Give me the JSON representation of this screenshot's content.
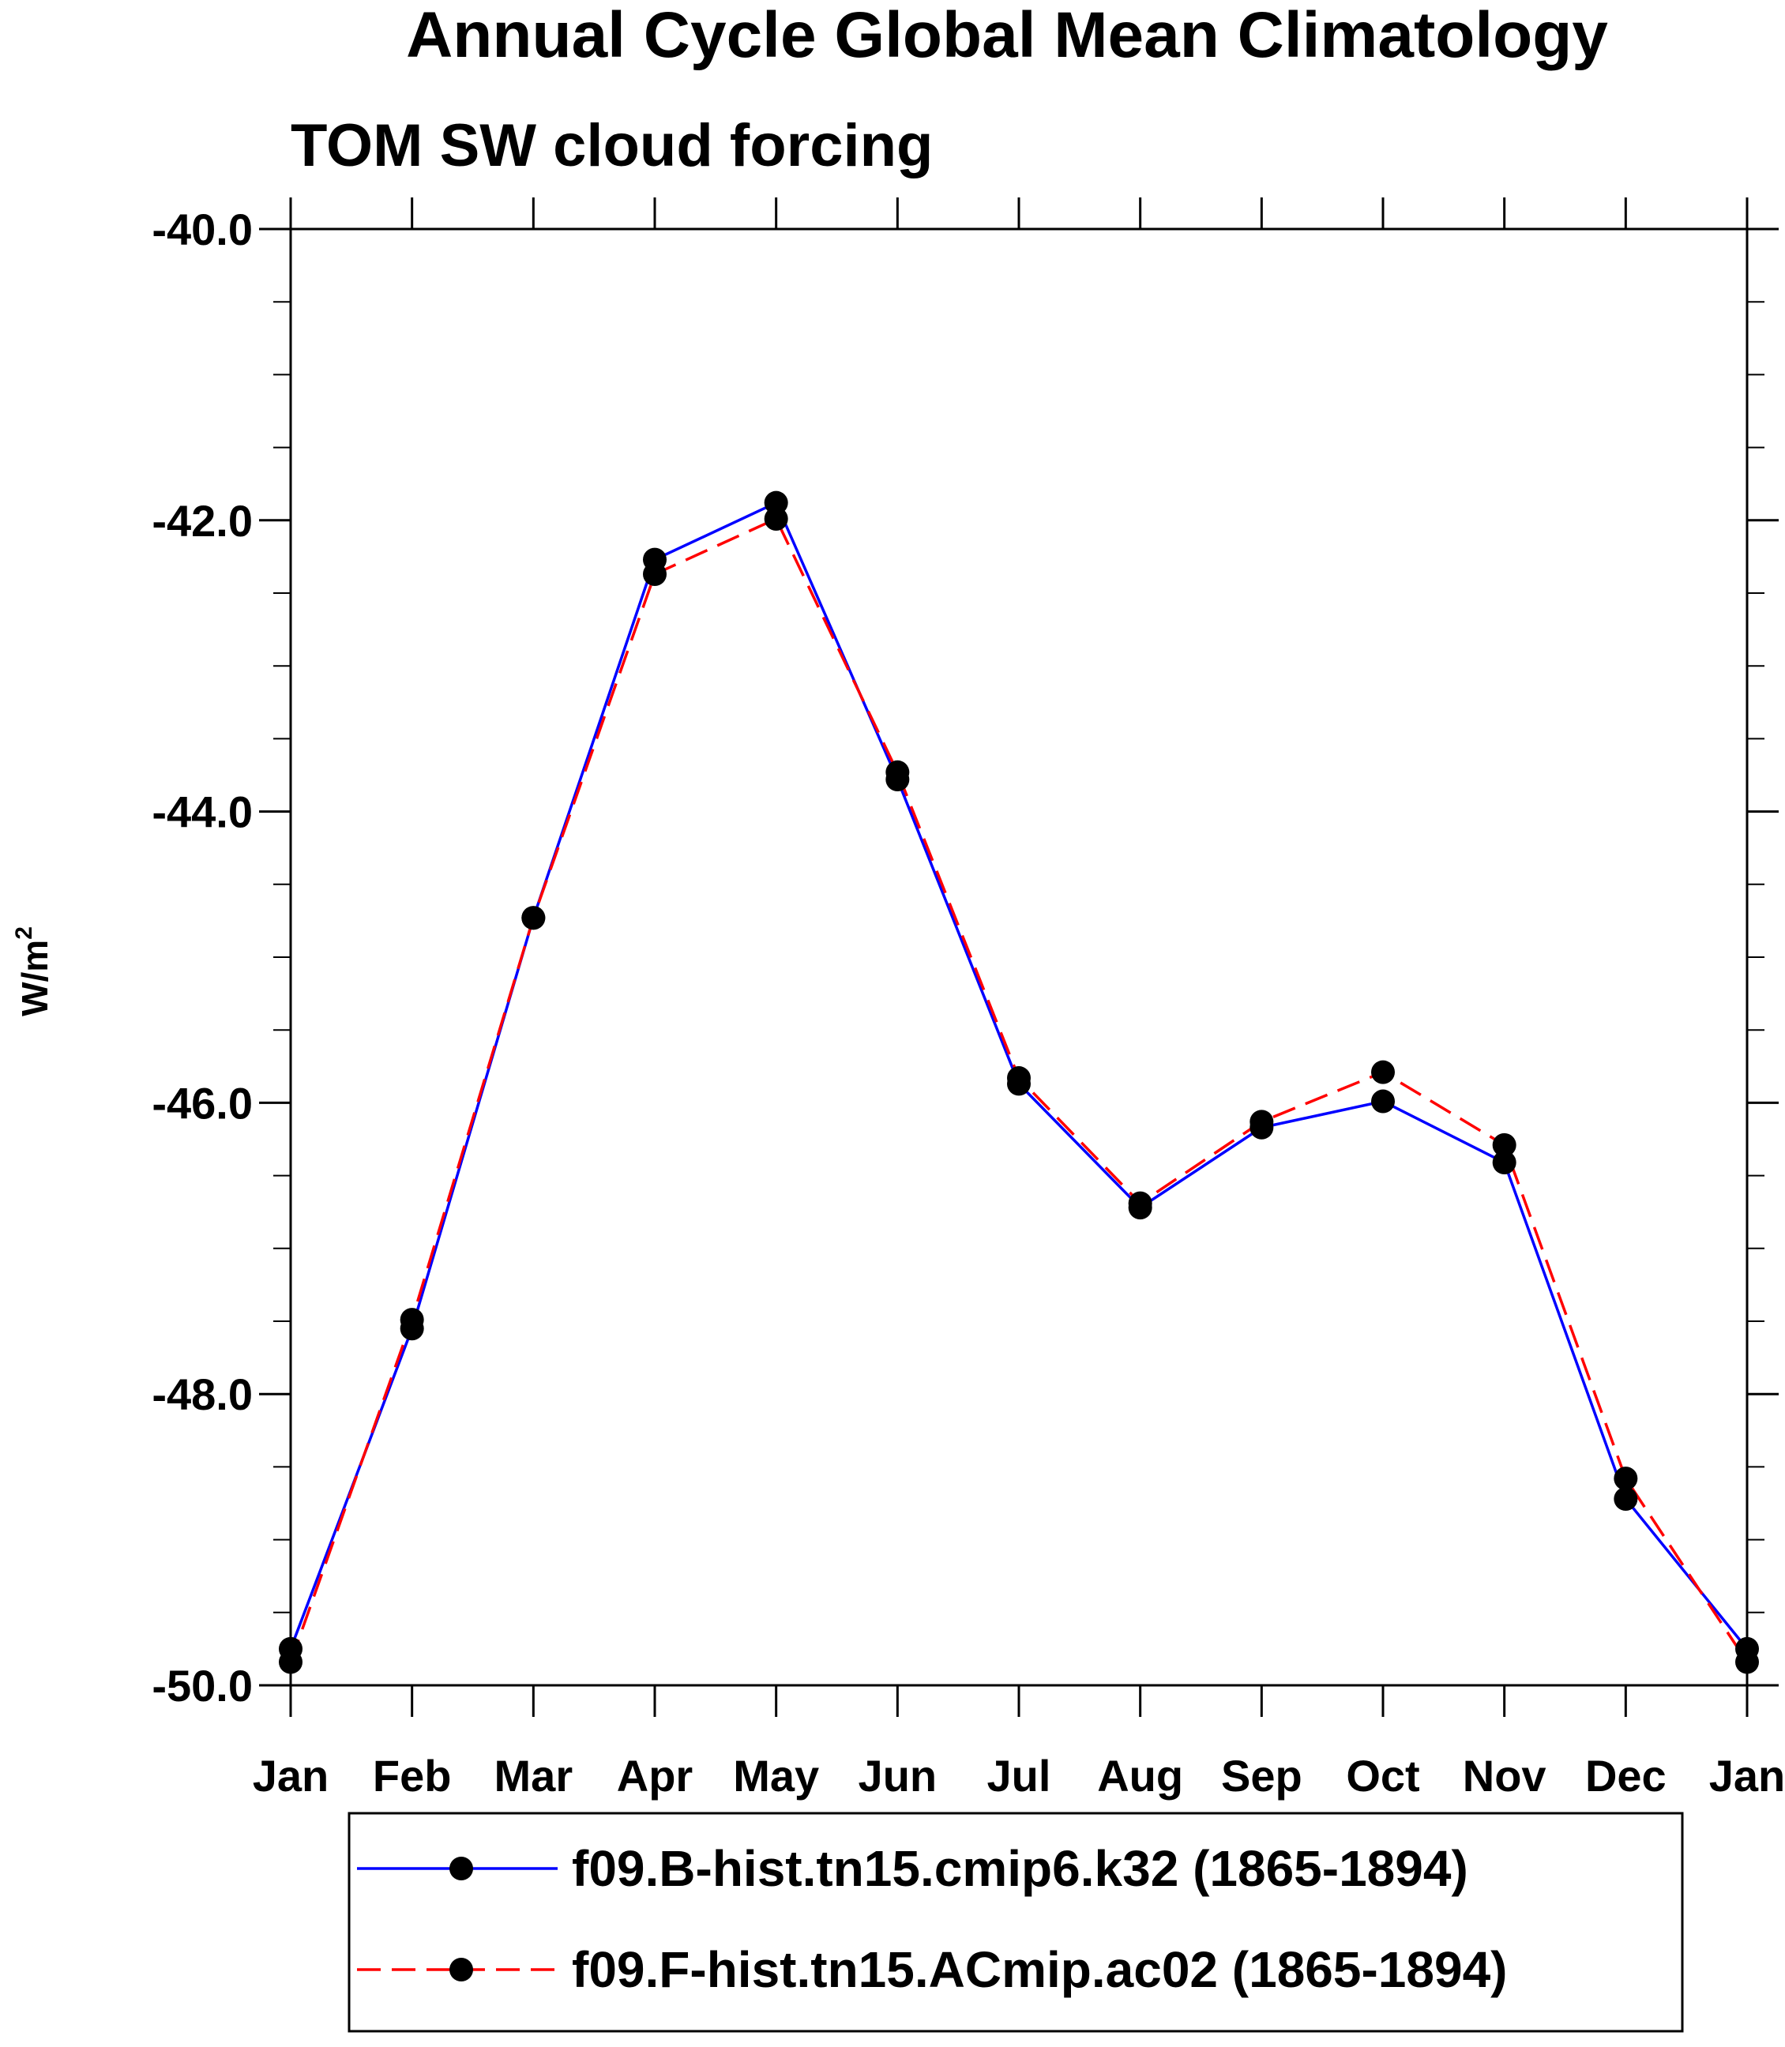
{
  "chart_data": {
    "type": "line",
    "title": "Annual Cycle Global Mean Climatology",
    "subtitle": "TOM SW cloud forcing",
    "ylabel": "W/m",
    "ylabel_superscript": "2",
    "xlabel": "",
    "categories": [
      "Jan",
      "Feb",
      "Mar",
      "Apr",
      "May",
      "Jun",
      "Jul",
      "Aug",
      "Sep",
      "Oct",
      "Nov",
      "Dec",
      "Jan"
    ],
    "ylim": [
      -50.0,
      -40.0
    ],
    "yticks": [
      -40.0,
      -42.0,
      -44.0,
      -46.0,
      -48.0,
      -50.0
    ],
    "ytick_labels": [
      "-40.0",
      "-42.0",
      "-44.0",
      "-46.0",
      "-48.0",
      "-50.0"
    ],
    "series": [
      {
        "name": "f09.B-hist.tn15.cmip6.k32 (1865-1894)",
        "color": "#0000ff",
        "style": "solid",
        "values": [
          -49.75,
          -47.55,
          -44.73,
          -42.27,
          -41.88,
          -43.78,
          -45.87,
          -46.72,
          -46.17,
          -45.99,
          -46.41,
          -48.72,
          -49.75
        ]
      },
      {
        "name": "f09.F-hist.tn15.ACmip.ac02 (1865-1894)",
        "color": "#ff0000",
        "style": "dashed",
        "values": [
          -49.84,
          -47.49,
          -44.73,
          -42.37,
          -41.99,
          -43.73,
          -45.83,
          -46.69,
          -46.13,
          -45.79,
          -46.29,
          -48.58,
          -49.84
        ]
      }
    ],
    "marker_color": "#000000",
    "legend_position": "bottom-center"
  }
}
